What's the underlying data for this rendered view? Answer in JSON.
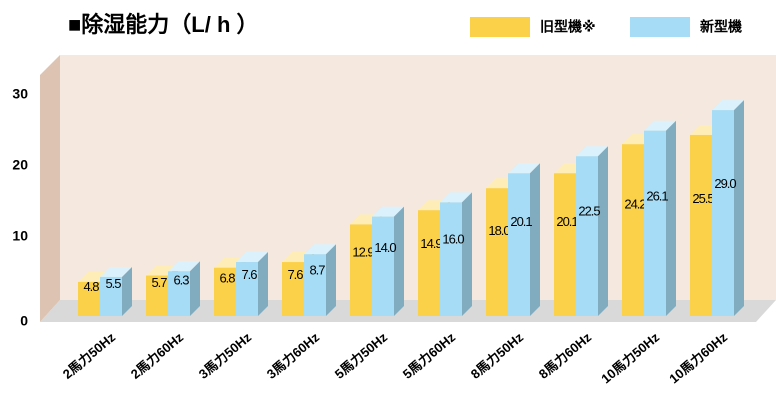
{
  "chart_data": {
    "type": "bar3d",
    "title": "■除湿能力（L/ h ）",
    "categories": [
      "2馬力50Hz",
      "2馬力60Hz",
      "3馬力50Hz",
      "3馬力60Hz",
      "5馬力50Hz",
      "5馬力60Hz",
      "8馬力50Hz",
      "8馬力60Hz",
      "10馬力50Hz",
      "10馬力60Hz"
    ],
    "series": [
      {
        "name": "旧型機※",
        "color": "#fcd14a",
        "values": [
          4.8,
          5.7,
          6.8,
          7.6,
          12.9,
          14.9,
          18.0,
          20.1,
          24.2,
          25.5
        ],
        "value_labels": [
          "4.8",
          "5.7",
          "6.8",
          "7.6",
          "12.9",
          "14.9",
          "18.0",
          "20.1",
          "24.2",
          "25.5"
        ]
      },
      {
        "name": "新型機",
        "color": "#a6dcf5",
        "values": [
          5.5,
          6.3,
          7.6,
          8.7,
          14.0,
          16.0,
          20.1,
          22.5,
          26.1,
          29.0
        ],
        "value_labels": [
          "5.5",
          "6.3",
          "7.6",
          "8.7",
          "14.0",
          "16.0",
          "20.1",
          "22.5",
          "26.1",
          "29.0"
        ]
      }
    ],
    "ylim": [
      0,
      35
    ],
    "yticks": [
      0,
      10,
      20,
      30
    ]
  }
}
